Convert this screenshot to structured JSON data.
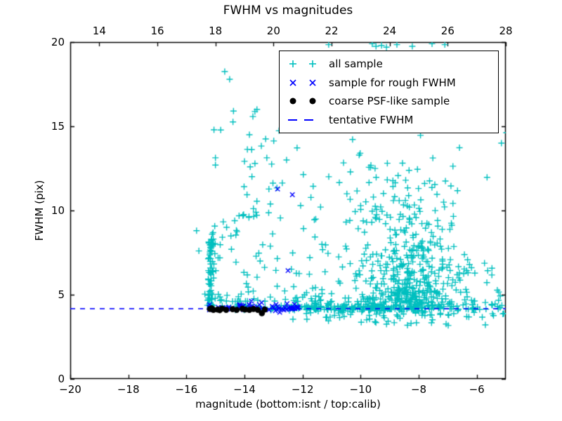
{
  "figure": {
    "title": "FWHM vs magnitudes",
    "xlabel": "magnitude (bottom:isnt / top:calib)",
    "ylabel": "FWHM (pix)",
    "background": "#ffffff",
    "spine_color": "#000000"
  },
  "chart_data": {
    "type": "scatter",
    "title": "FWHM vs magnitudes",
    "xlabel": "magnitude (bottom:isnt / top:calib)",
    "ylabel": "FWHM (pix)",
    "grid": false,
    "legend": {
      "position": "upper right"
    },
    "axes": {
      "bottom": {
        "range": [
          -20,
          -5
        ],
        "ticks": [
          {
            "v": -20,
            "label": "−20"
          },
          {
            "v": -18,
            "label": "−18"
          },
          {
            "v": -16,
            "label": "−16"
          },
          {
            "v": -14,
            "label": "−14"
          },
          {
            "v": -12,
            "label": "−12"
          },
          {
            "v": -10,
            "label": "−10"
          },
          {
            "v": -8,
            "label": "−8"
          },
          {
            "v": -6,
            "label": "−6"
          }
        ]
      },
      "top": {
        "range": [
          13,
          28
        ],
        "ticks": [
          {
            "v": 14,
            "label": "14"
          },
          {
            "v": 16,
            "label": "16"
          },
          {
            "v": 18,
            "label": "18"
          },
          {
            "v": 20,
            "label": "20"
          },
          {
            "v": 22,
            "label": "22"
          },
          {
            "v": 24,
            "label": "24"
          },
          {
            "v": 26,
            "label": "26"
          },
          {
            "v": 28,
            "label": "28"
          }
        ]
      },
      "left": {
        "range": [
          0,
          20
        ],
        "ticks": [
          {
            "v": 0,
            "label": "0"
          },
          {
            "v": 5,
            "label": "5"
          },
          {
            "v": 10,
            "label": "10"
          },
          {
            "v": 15,
            "label": "15"
          },
          {
            "v": 20,
            "label": "20"
          }
        ]
      }
    },
    "tentative_fwhm": 4.17,
    "seed": 7,
    "series": [
      {
        "name": "all sample",
        "marker": "plus",
        "color": "#00bfbf",
        "clusters": [
          {
            "kind": "band",
            "x0": -15.28,
            "x1": -12.4,
            "y": 4.22,
            "sy": 0.08,
            "n": 45
          },
          {
            "kind": "band",
            "x0": -12.4,
            "x1": -8.0,
            "y": 4.22,
            "sy": 0.09,
            "n": 135
          },
          {
            "kind": "band",
            "x0": -8.0,
            "x1": -5.05,
            "y": 4.25,
            "sy": 0.22,
            "n": 60
          },
          {
            "kind": "vstrip",
            "cx": -15.17,
            "sx": 0.06,
            "y0": 4.35,
            "y1": 8.7,
            "pow": 2.0,
            "n": 60
          },
          {
            "kind": "gauss",
            "cx": -15.08,
            "cy": 7.9,
            "sx": 0.1,
            "sy": 0.5,
            "n": 14
          },
          {
            "kind": "box",
            "x0": -15.0,
            "x1": -11.3,
            "y0": 4.6,
            "y1": 16.0,
            "pow": 2.6,
            "n": 85
          },
          {
            "kind": "gauss",
            "cx": -14.3,
            "cy": 9.1,
            "sx": 0.15,
            "sy": 0.35,
            "n": 8
          },
          {
            "kind": "gauss",
            "cx": -13.55,
            "cy": 9.9,
            "sx": 0.3,
            "sy": 0.45,
            "n": 10
          },
          {
            "kind": "gauss",
            "cx": -8.35,
            "cy": 4.95,
            "sx": 0.8,
            "sy": 0.55,
            "n": 190,
            "ymin": 3.6
          },
          {
            "kind": "gauss",
            "cx": -8.2,
            "cy": 6.4,
            "sx": 0.9,
            "sy": 1.25,
            "n": 170,
            "ymin": 4.0
          },
          {
            "kind": "gauss",
            "cx": -8.65,
            "cy": 9.2,
            "sx": 1.05,
            "sy": 1.6,
            "n": 90,
            "ymin": 4.2
          },
          {
            "kind": "gauss",
            "cx": -9.1,
            "cy": 12.3,
            "sx": 1.35,
            "sy": 1.8,
            "n": 48,
            "ymin": 4.2
          },
          {
            "kind": "band",
            "x0": -12.0,
            "x1": -9.4,
            "y": 4.25,
            "sy": 0.28,
            "n": 50
          },
          {
            "kind": "box",
            "x0": -12.0,
            "x1": -9.4,
            "y0": 4.8,
            "y1": 9.5,
            "pow": 2.2,
            "n": 25
          },
          {
            "kind": "box",
            "x0": -11.9,
            "x1": -5.2,
            "y0": 3.15,
            "y1": 3.95,
            "pow": 1.0,
            "n": 30
          },
          {
            "kind": "box",
            "x0": -6.5,
            "x1": -5.05,
            "y0": 4.1,
            "y1": 7.2,
            "pow": 1.8,
            "n": 16
          }
        ],
        "points": [
          [
            -14.68,
            18.25
          ],
          [
            -14.51,
            17.79
          ],
          [
            -15.05,
            14.79
          ],
          [
            -13.64,
            15.88
          ],
          [
            -13.57,
            16.0
          ],
          [
            -13.71,
            15.58
          ],
          [
            -13.9,
            13.63
          ],
          [
            -13.83,
            14.5
          ],
          [
            -13.27,
            14.25
          ],
          [
            -13.42,
            13.83
          ],
          [
            -13.23,
            13.13
          ],
          [
            -15.0,
            13.13
          ],
          [
            -15.0,
            12.7
          ],
          [
            -14.0,
            12.92
          ],
          [
            -13.64,
            12.79
          ],
          [
            -12.55,
            13.0
          ],
          [
            -11.1,
            19.85
          ],
          [
            -9.6,
            19.9
          ],
          [
            -9.47,
            19.75
          ],
          [
            -9.28,
            19.8
          ],
          [
            -9.11,
            19.7
          ],
          [
            -8.75,
            19.85
          ],
          [
            -8.22,
            19.75
          ],
          [
            -7.54,
            19.9
          ],
          [
            -7.1,
            19.85
          ],
          [
            -5.15,
            14.0
          ],
          [
            -6.82,
            12.63
          ],
          [
            -7.08,
            11.75
          ],
          [
            -6.89,
            11.46
          ],
          [
            -7.37,
            10.96
          ],
          [
            -6.82,
            10.42
          ],
          [
            -7.18,
            7.0
          ],
          [
            -6.91,
            7.08
          ],
          [
            -7.3,
            6.46
          ],
          [
            -6.45,
            6.25
          ],
          [
            -5.48,
            6.17
          ],
          [
            -12.33,
            3.54
          ],
          [
            -11.85,
            3.54
          ],
          [
            -15.65,
            8.8
          ],
          [
            -15.57,
            7.6
          ],
          [
            -11.65,
            15.6
          ],
          [
            -12.02,
            16.25
          ]
        ]
      },
      {
        "name": "sample for rough FWHM",
        "marker": "cross",
        "color": "#0000ff",
        "clusters": [
          {
            "kind": "band",
            "x0": -15.25,
            "x1": -13.3,
            "y": 4.24,
            "sy": 0.1,
            "n": 18
          },
          {
            "kind": "band",
            "x0": -14.2,
            "x1": -12.1,
            "y": 4.25,
            "sy": 0.12,
            "n": 38
          }
        ],
        "points": [
          [
            -13.76,
            4.62
          ],
          [
            -12.86,
            11.28
          ],
          [
            -12.35,
            10.94
          ],
          [
            -12.5,
            6.43
          ]
        ]
      },
      {
        "name": "coarse PSF-like sample",
        "marker": "dot",
        "color": "#000000",
        "clusters": [],
        "points": [
          [
            -15.19,
            4.15
          ],
          [
            -15.13,
            4.2
          ],
          [
            -15.07,
            4.1
          ],
          [
            -14.92,
            4.12
          ],
          [
            -14.85,
            4.08
          ],
          [
            -14.77,
            4.18
          ],
          [
            -14.63,
            4.1
          ],
          [
            -14.41,
            4.14
          ],
          [
            -14.27,
            4.1
          ],
          [
            -14.07,
            4.16
          ],
          [
            -13.98,
            4.12
          ],
          [
            -13.83,
            4.1
          ],
          [
            -13.69,
            4.15
          ],
          [
            -13.54,
            4.1
          ],
          [
            -13.4,
            3.9
          ],
          [
            -13.3,
            4.12
          ]
        ]
      },
      {
        "name": "tentative FWHM",
        "marker": "dashed-line",
        "color": "#0000ff",
        "y": 4.17
      }
    ]
  }
}
